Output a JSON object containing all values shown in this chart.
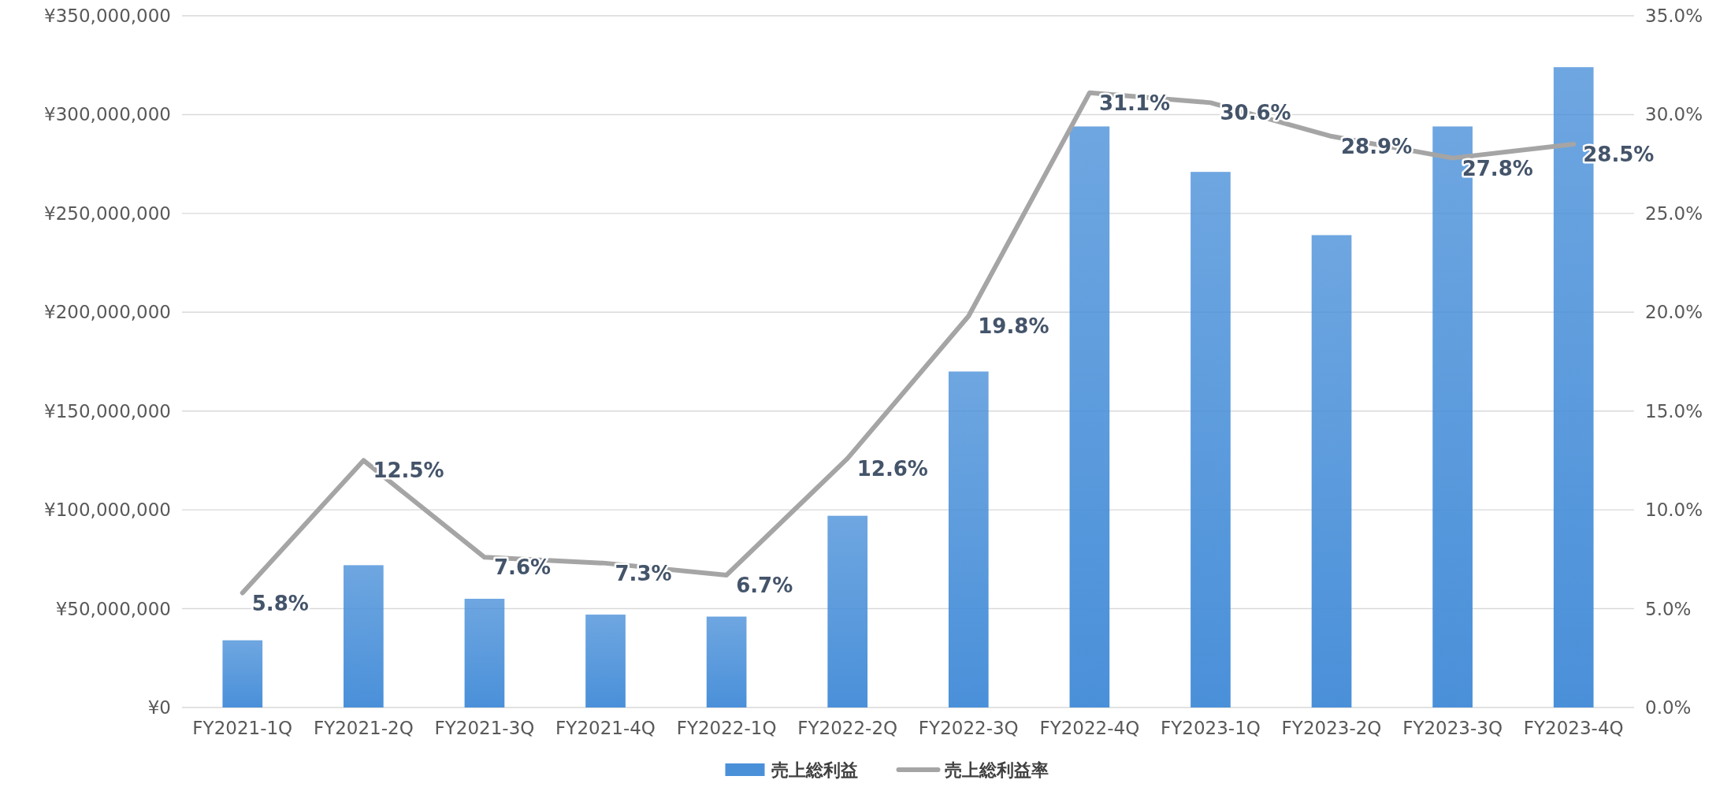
{
  "chart_data": {
    "type": "bar",
    "categories": [
      "FY2021-1Q",
      "FY2021-2Q",
      "FY2021-3Q",
      "FY2021-4Q",
      "FY2022-1Q",
      "FY2022-2Q",
      "FY2022-3Q",
      "FY2022-4Q",
      "FY2023-1Q",
      "FY2023-2Q",
      "FY2023-3Q",
      "FY2023-4Q"
    ],
    "series": [
      {
        "name": "売上総利益",
        "color": "#4a90d9",
        "values": [
          34000000,
          72000000,
          55000000,
          47000000,
          46000000,
          97000000,
          170000000,
          294000000,
          271000000,
          239000000,
          294000000,
          324000000
        ]
      },
      {
        "name": "売上総利益率",
        "type": "line",
        "axis": "y2",
        "color": "#a5a5a5",
        "values": [
          5.8,
          12.5,
          7.6,
          7.3,
          6.7,
          12.6,
          19.8,
          31.1,
          30.6,
          28.9,
          27.8,
          28.5
        ],
        "value_labels": [
          "5.8%",
          "12.5%",
          "7.6%",
          "7.3%",
          "6.7%",
          "12.6%",
          "19.8%",
          "31.1%",
          "30.6%",
          "28.9%",
          "27.8%",
          "28.5%"
        ]
      }
    ],
    "ylim": [
      0,
      350000000
    ],
    "yticks": [
      {
        "value": 0,
        "label": "¥0"
      },
      {
        "value": 50000000,
        "label": "¥50,000,000"
      },
      {
        "value": 100000000,
        "label": "¥100,000,000"
      },
      {
        "value": 150000000,
        "label": "¥150,000,000"
      },
      {
        "value": 200000000,
        "label": "¥200,000,000"
      },
      {
        "value": 250000000,
        "label": "¥250,000,000"
      },
      {
        "value": 300000000,
        "label": "¥300,000,000"
      },
      {
        "value": 350000000,
        "label": "¥350,000,000"
      }
    ],
    "y2lim": [
      0,
      35
    ],
    "y2ticks": [
      {
        "value": 0,
        "label": "0.0%"
      },
      {
        "value": 5,
        "label": "5.0%"
      },
      {
        "value": 10,
        "label": "10.0%"
      },
      {
        "value": 15,
        "label": "15.0%"
      },
      {
        "value": 20,
        "label": "20.0%"
      },
      {
        "value": 25,
        "label": "25.0%"
      },
      {
        "value": 30,
        "label": "30.0%"
      },
      {
        "value": 35,
        "label": "35.0%"
      }
    ],
    "grid": "y",
    "legend": "bottom",
    "marker": "none",
    "line_style": "solid"
  }
}
